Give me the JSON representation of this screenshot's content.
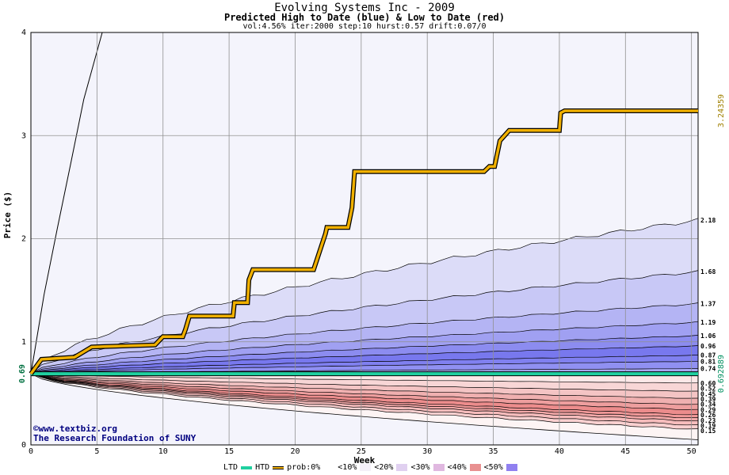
{
  "header": {
    "title": "Evolving Systems Inc - 2009",
    "subtitle": "Predicted High to Date (blue) &  Low to Date (red)",
    "params": "vol:4.56% iter:2000 step:10 hurst:0.57 drift:0.07/0"
  },
  "credit": {
    "line1": "©www.textbiz.org",
    "line2": "The Research Foundation of SUNY"
  },
  "legend": {
    "ltd": "LTD",
    "htd": "HTD",
    "prob": "prob:0%",
    "b10": "<10%",
    "b20": "<20%",
    "b30": "<30%",
    "b40": "<40%",
    "b50": "<50%"
  },
  "colors": {
    "htd_line": "#f0b000",
    "ltd_line": "#20d0a0",
    "blue_band": "#7070f0",
    "red_band": "#f07070",
    "grid": "#909090"
  },
  "chart_data": {
    "type": "area",
    "xlabel": "Week",
    "ylabel": "Price ($)",
    "xlim": [
      0,
      50.5
    ],
    "ylim": [
      0,
      4
    ],
    "x_ticks": [
      0,
      5,
      10,
      15,
      20,
      25,
      30,
      35,
      40,
      45,
      50
    ],
    "y_ticks": [
      0,
      1,
      2,
      3,
      4
    ],
    "start_price": 0.69,
    "start_price_label": "0.69",
    "htd_final_label": "3.24359",
    "ltd_final_label": "0.692889",
    "high_quantile_end_labels": [
      "2.18",
      "1.68",
      "1.37",
      "1.19",
      "1.06",
      "0.96",
      "0.87",
      "0.81",
      "0.74"
    ],
    "high_quantile_end_values": [
      2.18,
      1.68,
      1.37,
      1.19,
      1.06,
      0.96,
      0.87,
      0.81,
      0.74
    ],
    "low_quantile_end_labels": [
      "0.60",
      "0.52",
      "0.45",
      "0.39",
      "0.34",
      "0.29",
      "0.26",
      "0.23",
      "0.19",
      "0.15"
    ],
    "low_quantile_end_values": [
      0.6,
      0.52,
      0.45,
      0.39,
      0.34,
      0.29,
      0.26,
      0.23,
      0.19,
      0.15
    ],
    "upper_envelope": {
      "x": [
        0,
        1,
        2,
        3,
        4,
        5.4
      ],
      "y": [
        0.69,
        1.46,
        2.1,
        2.72,
        3.35,
        4.0
      ]
    },
    "lower_envelope_end": 0.05,
    "htd_path": {
      "x": [
        0,
        0.8,
        3.3,
        4.6,
        9.4,
        10.0,
        11.5,
        11.7,
        12.0,
        15.3,
        15.4,
        16.4,
        16.5,
        16.8,
        21.4,
        22.3,
        22.4,
        24.0,
        24.3,
        24.5,
        34.3,
        34.7,
        35.1,
        35.5,
        36.2,
        36.5,
        40.0,
        40.1,
        40.4,
        50.5
      ],
      "y": [
        0.69,
        0.83,
        0.85,
        0.95,
        0.97,
        1.05,
        1.05,
        1.12,
        1.25,
        1.25,
        1.38,
        1.38,
        1.6,
        1.7,
        1.7,
        2.05,
        2.11,
        2.11,
        2.3,
        2.65,
        2.65,
        2.7,
        2.7,
        2.95,
        3.05,
        3.05,
        3.05,
        3.22,
        3.24,
        3.24
      ]
    },
    "ltd_path": {
      "x": [
        0,
        50.5
      ],
      "y": [
        0.69,
        0.69
      ]
    }
  }
}
